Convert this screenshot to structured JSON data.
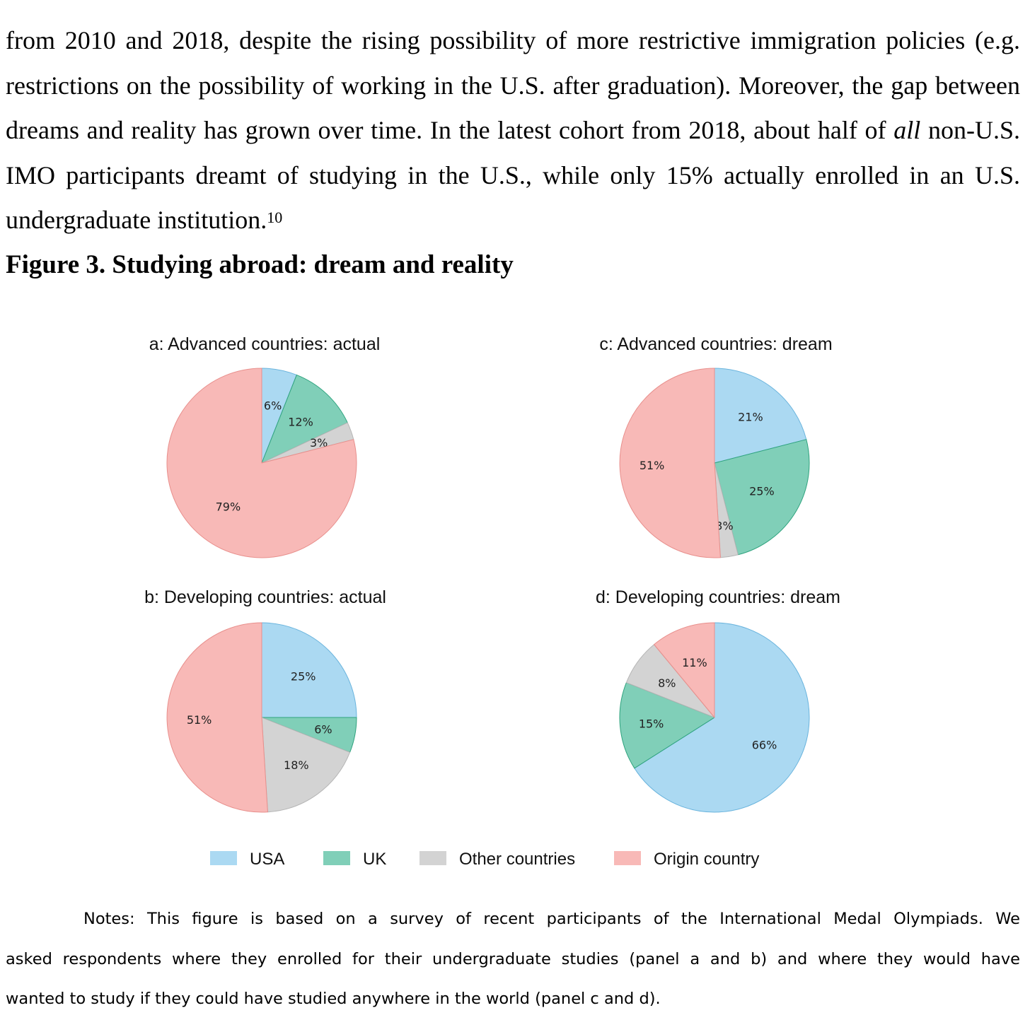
{
  "paragraph": {
    "lines": [
      {
        "text": "from 2010 and 2018, despite the rising possibility of more restrictive immigration policies (e.g."
      },
      {
        "text": "restrictions on the possibility of working in the U.S. after graduation). Moreover, the gap between"
      },
      {
        "before": "dreams and reality has grown over time. In the latest cohort from 2018, about half of ",
        "italic": "all",
        "after": " non-U.S."
      },
      {
        "text": "IMO participants dreamt of studying in the U.S., while only 15% actually enrolled in an U.S."
      },
      {
        "text": "undergraduate institution.",
        "footnote": "10"
      }
    ]
  },
  "figure_caption": "Figure 3. Studying abroad: dream and reality",
  "colors": {
    "USA": "#abd9f2",
    "UK": "#80cfb8",
    "Other countries": "#d3d3d3",
    "Origin country": "#f8b9b7",
    "USA_stroke": "#6ab4dd",
    "UK_stroke": "#2fa37e",
    "Other countries_stroke": "#b5b5b5",
    "Origin country_stroke": "#e88f8c"
  },
  "chart_data": [
    {
      "type": "pie",
      "id": "a",
      "title": "a: Advanced countries: actual",
      "labels": [
        "USA",
        "UK",
        "Other countries",
        "Origin country"
      ],
      "values": [
        6,
        12,
        3,
        79
      ]
    },
    {
      "type": "pie",
      "id": "b",
      "title": "b: Developing countries: actual",
      "labels": [
        "USA",
        "UK",
        "Other countries",
        "Origin country"
      ],
      "values": [
        25,
        6,
        18,
        51
      ]
    },
    {
      "type": "pie",
      "id": "c",
      "title": "c: Advanced countries: dream",
      "labels": [
        "USA",
        "UK",
        "Other countries",
        "Origin country"
      ],
      "values": [
        21,
        25,
        3,
        51
      ]
    },
    {
      "type": "pie",
      "id": "d",
      "title": "d: Developing countries: dream",
      "labels": [
        "USA",
        "UK",
        "Other countries",
        "Origin country"
      ],
      "values": [
        66,
        15,
        8,
        11
      ]
    }
  ],
  "legend": [
    "USA",
    "UK",
    "Other countries",
    "Origin country"
  ],
  "notes": {
    "lines": [
      "Notes: This figure is based on a survey of recent participants of the International Medal Olympiads. We",
      "asked respondents where they enrolled for their undergraduate studies (panel a and b) and where they would have",
      "wanted to study if they could have studied anywhere in the world (panel c and d)."
    ]
  }
}
